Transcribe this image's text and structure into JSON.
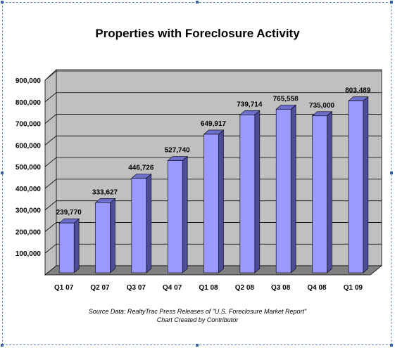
{
  "chart_data": {
    "type": "bar",
    "title": "Properties with Foreclosure Activity",
    "categories": [
      "Q1 07",
      "Q2 07",
      "Q3 07",
      "Q4 07",
      "Q1 08",
      "Q2 08",
      "Q3 08",
      "Q4 08",
      "Q1 09"
    ],
    "values": [
      239770,
      333627,
      446726,
      527740,
      649917,
      739714,
      765558,
      735000,
      803489
    ],
    "value_labels": [
      "239,770",
      "333,627",
      "446,726",
      "527,740",
      "649,917",
      "739,714",
      "765,558",
      "735,000",
      "803,489"
    ],
    "ylim": [
      0,
      900000
    ],
    "yticks": [
      100000,
      200000,
      300000,
      400000,
      500000,
      600000,
      700000,
      800000,
      900000
    ],
    "ytick_labels": [
      "100,000",
      "200,000",
      "300,000",
      "400,000",
      "500,000",
      "600,000",
      "700,000",
      "800,000",
      "900,000"
    ],
    "grid": true,
    "style": "3d",
    "colors": {
      "bar_front": "#9999ff",
      "bar_side": "#4c4c99",
      "bar_top": "#6d6dcc",
      "wall": "#c0c0c0",
      "floor": "#808080",
      "gridline": "#000000"
    }
  },
  "source_line1": "Source Data: RealtyTrac Press Releases of \"U.S. Foreclosure Market Report\"",
  "source_line2": "Chart Created by Contributor"
}
